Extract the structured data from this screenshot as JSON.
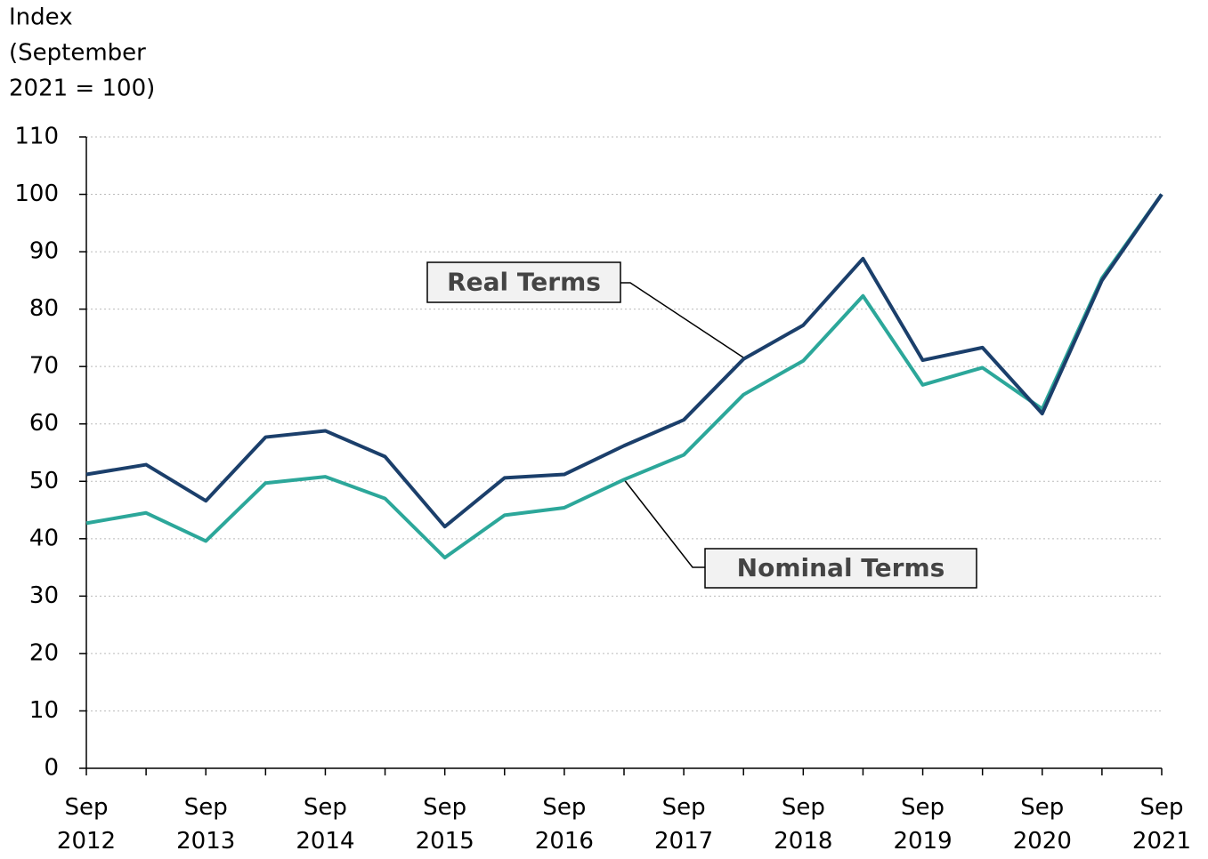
{
  "chart_data": {
    "type": "line",
    "y_label": [
      "Index",
      "(September",
      "2021 = 100)"
    ],
    "categories": [
      "Sep 2012",
      null,
      "Sep 2013",
      null,
      "Sep 2014",
      null,
      "Sep 2015",
      null,
      "Sep 2016",
      null,
      "Sep 2017",
      null,
      "Sep 2018",
      null,
      "Sep 2019",
      null,
      "Sep 2020",
      null,
      "Sep 2021"
    ],
    "series": [
      {
        "name": "Real Terms",
        "color": "#1b3f6b",
        "values": [
          51.2,
          52.9,
          46.6,
          57.7,
          58.8,
          54.3,
          42.1,
          50.6,
          51.2,
          56.2,
          60.7,
          71.3,
          77.2,
          88.8,
          71.1,
          73.3,
          61.8,
          85.0,
          100
        ]
      },
      {
        "name": "Nominal Terms",
        "color": "#2ca79a",
        "values": [
          42.7,
          44.5,
          39.6,
          49.7,
          50.8,
          47.0,
          36.7,
          44.1,
          45.4,
          50.3,
          54.6,
          65.1,
          71.0,
          82.3,
          66.8,
          69.8,
          62.6,
          85.4,
          100
        ]
      }
    ],
    "ylim": [
      0,
      110
    ],
    "yticks": [
      0,
      10,
      20,
      30,
      40,
      50,
      60,
      70,
      80,
      90,
      100,
      110
    ],
    "grid": true
  }
}
